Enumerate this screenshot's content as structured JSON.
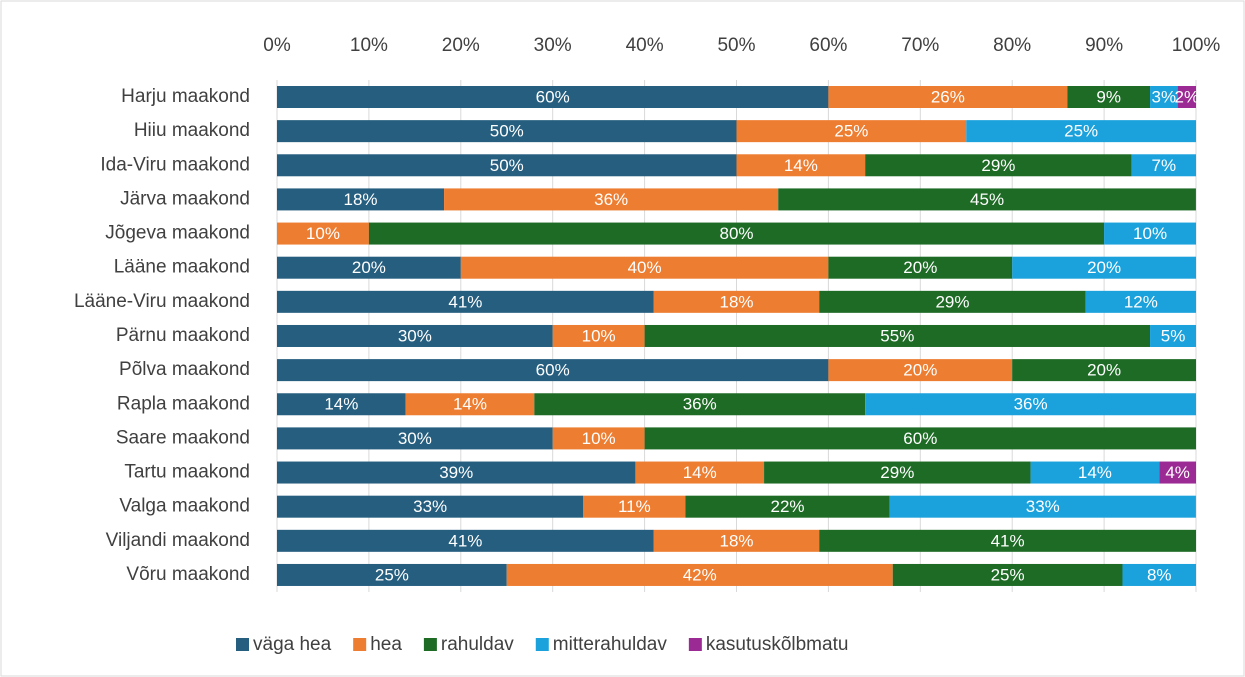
{
  "chart_data": {
    "type": "bar",
    "orientation": "horizontal",
    "stacked": true,
    "categories": [
      "Harju maakond",
      "Hiiu maakond",
      "Ida-Viru maakond",
      "Järva maakond",
      "Jõgeva maakond",
      "Lääne maakond",
      "Lääne-Viru maakond",
      "Pärnu maakond",
      "Põlva maakond",
      "Rapla maakond",
      "Saare maakond",
      "Tartu maakond",
      "Valga maakond",
      "Viljandi maakond",
      "Võru maakond"
    ],
    "series": [
      {
        "name": "väga hea",
        "color": "#255e7f",
        "values": [
          60,
          50,
          50,
          18.18,
          null,
          20,
          41,
          30,
          60,
          14,
          30,
          39,
          33.33,
          41,
          25
        ],
        "value_labels": [
          "60%",
          "50%",
          "50%",
          "18%",
          null,
          "20%",
          "41%",
          "30%",
          "60%",
          "14%",
          "30%",
          "39%",
          "33%",
          "41%",
          "25%"
        ]
      },
      {
        "name": "hea",
        "color": "#ed7d31",
        "values": [
          26,
          25,
          14,
          36.36,
          10,
          40,
          18,
          10,
          20,
          14,
          10,
          14,
          11.11,
          18,
          42
        ],
        "value_labels": [
          "26%",
          "25%",
          "14%",
          "36%",
          "10%",
          "40%",
          "18%",
          "10%",
          "20%",
          "14%",
          "10%",
          "14%",
          "11%",
          "18%",
          "42%"
        ]
      },
      {
        "name": "rahuldav",
        "color": "#1e6b26",
        "values": [
          9,
          null,
          29,
          45.45,
          80,
          20,
          29,
          55,
          20,
          36,
          60,
          29,
          22.22,
          41,
          25
        ],
        "value_labels": [
          "9%",
          null,
          "29%",
          "45%",
          "80%",
          "20%",
          "29%",
          "55%",
          "20%",
          "36%",
          "60%",
          "29%",
          "22%",
          "41%",
          "25%"
        ]
      },
      {
        "name": "mitterahuldav",
        "color": "#1ba1dc",
        "values": [
          3,
          25,
          7,
          null,
          10,
          20,
          12,
          5,
          null,
          36,
          null,
          14,
          33.33,
          null,
          8
        ],
        "value_labels": [
          "3%",
          "25%",
          "7%",
          null,
          "10%",
          "20%",
          "12%",
          "5%",
          null,
          "36%",
          null,
          "14%",
          "33%",
          null,
          "8%"
        ]
      },
      {
        "name": "kasutuskõlbmatu",
        "color": "#9c2a94",
        "values": [
          2,
          null,
          null,
          null,
          null,
          null,
          null,
          null,
          null,
          null,
          null,
          4,
          null,
          null,
          null
        ],
        "value_labels": [
          "2%",
          null,
          null,
          null,
          null,
          null,
          null,
          null,
          null,
          null,
          null,
          "4%",
          null,
          null,
          null
        ]
      }
    ],
    "xlim": [
      0,
      100
    ],
    "xticks": [
      {
        "value": 0,
        "label": "0%"
      },
      {
        "value": 10,
        "label": "10%"
      },
      {
        "value": 20,
        "label": "20%"
      },
      {
        "value": 30,
        "label": "30%"
      },
      {
        "value": 40,
        "label": "40%"
      },
      {
        "value": 50,
        "label": "50%"
      },
      {
        "value": 60,
        "label": "60%"
      },
      {
        "value": 70,
        "label": "70%"
      },
      {
        "value": 80,
        "label": "80%"
      },
      {
        "value": 90,
        "label": "90%"
      },
      {
        "value": 100,
        "label": "100%"
      }
    ],
    "grid": true,
    "legend": "bottom"
  }
}
